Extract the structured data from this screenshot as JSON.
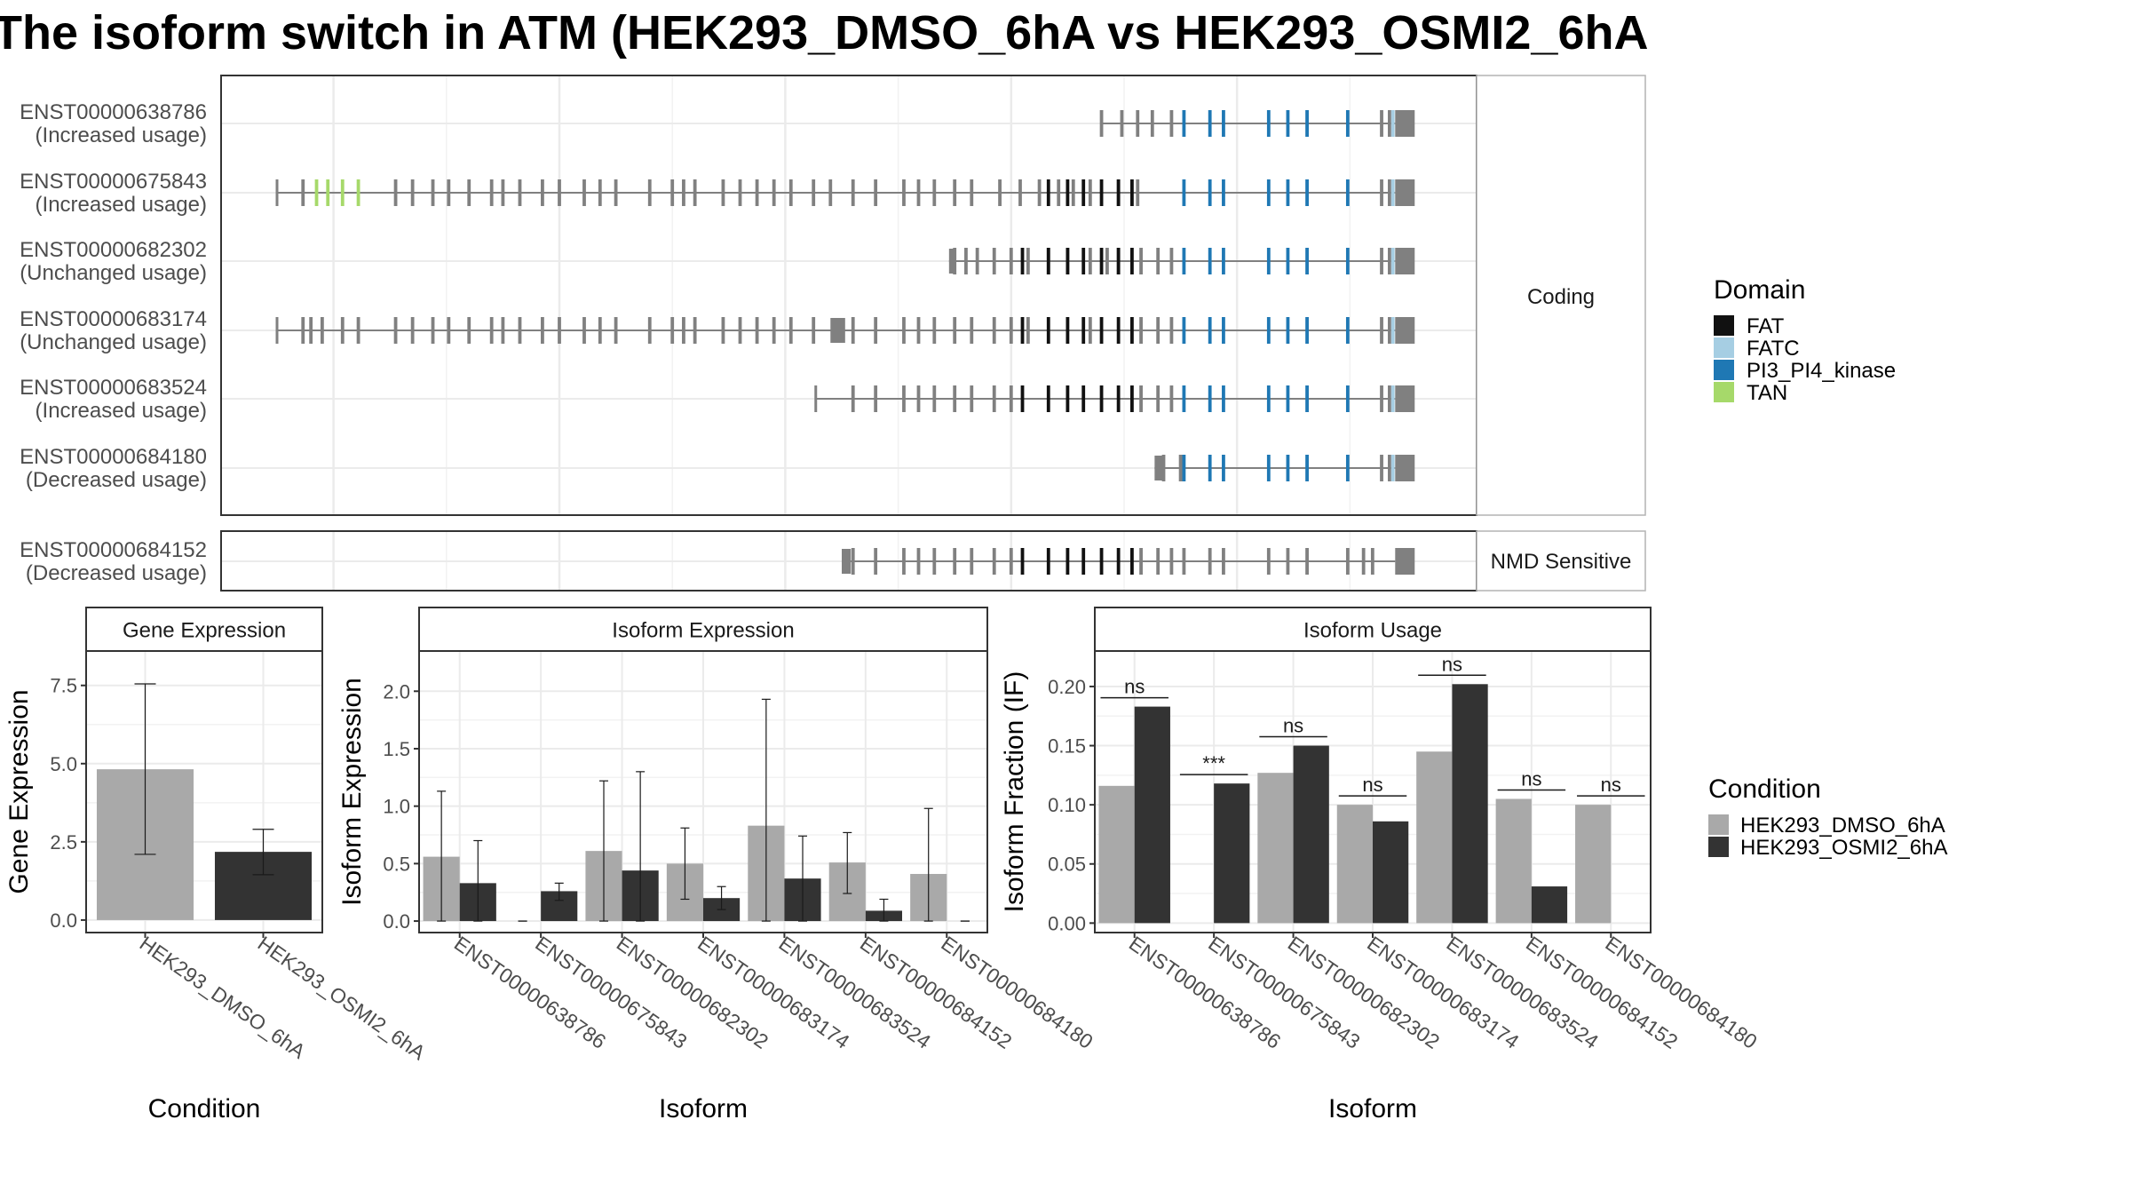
{
  "title": "The isoform switch in ATM (HEK293_DMSO_6hA vs HEK293_OSMI2_6hA",
  "colors": {
    "bg": "#ffffff",
    "panel_border": "#333333",
    "grid": "#ebebeb",
    "exon": "#808080",
    "intron": "#808080",
    "strip_fill": "#ffffff",
    "cond1": "#a9a9a9",
    "cond2": "#333333",
    "text": "#4d4d4d",
    "title_text": "#000000"
  },
  "structure": {
    "panels": [
      "Coding",
      "NMD Sensitive"
    ],
    "genomic_grid": [
      0.05,
      0.25,
      0.45,
      0.65,
      0.85
    ],
    "genomic_minor_grid": [
      0.15,
      0.35,
      0.55,
      0.75,
      0.95
    ],
    "domain_colors": {
      "FAT": "#111111",
      "FATC": "#a6cee3",
      "PI3_PI4_kinase": "#1f78b4",
      "TAN": "#a6d96a"
    },
    "common_tail": {
      "blue_exons": [
        0.826,
        0.838,
        0.878,
        0.895,
        0.912,
        0.948
      ],
      "gray_exons": [
        0.978,
        0.985
      ],
      "fatc_exon": 0.988,
      "utr": [
        0.99,
        1.008
      ]
    },
    "isoforms": [
      {
        "id": "ENST00000638786",
        "usage": "(Increased usage)",
        "panel": "Coding",
        "intron": [
          0.73,
          0.99
        ],
        "utr5": null,
        "gray_exons": [
          0.73,
          0.748,
          0.762,
          0.775,
          0.792
        ],
        "black_exons": [],
        "blue_start": 0.803,
        "tan_exons": []
      },
      {
        "id": "ENST00000675843",
        "usage": "(Increased usage)",
        "panel": "Coding",
        "intron": [
          0,
          0.99
        ],
        "utr5": null,
        "tick_start": 0,
        "gray_exons": [
          0.023,
          0.105,
          0.12,
          0.138,
          0.152,
          0.17,
          0.19,
          0.2,
          0.215,
          0.235,
          0.25,
          0.272,
          0.286,
          0.3,
          0.33,
          0.35,
          0.36,
          0.37,
          0.395,
          0.41,
          0.425,
          0.44,
          0.455,
          0.475,
          0.49,
          0.51,
          0.53,
          0.555,
          0.568,
          0.582,
          0.6,
          0.615,
          0.64,
          0.658,
          0.675,
          0.692,
          0.705,
          0.72,
          0.745,
          0.762
        ],
        "black_exons": [
          0.683,
          0.7,
          0.714,
          0.73,
          0.745,
          0.757
        ],
        "blue_start": 0.803,
        "tan_exons": [
          0.035,
          0.045,
          0.058,
          0.072
        ]
      },
      {
        "id": "ENST00000682302",
        "usage": "(Unchanged usage)",
        "panel": "Coding",
        "intron": [
          0.595,
          0.99
        ],
        "utr5": [
          0.595,
          0.6
        ],
        "gray_exons": [
          0.6,
          0.61,
          0.62,
          0.635,
          0.65,
          0.665,
          0.683,
          0.7,
          0.72,
          0.735,
          0.745,
          0.765,
          0.78,
          0.792
        ],
        "black_exons": [
          0.66,
          0.683,
          0.7,
          0.714,
          0.73,
          0.745,
          0.757
        ],
        "blue_start": 0.803,
        "tan_exons": []
      },
      {
        "id": "ENST00000683174",
        "usage": "(Unchanged usage)",
        "panel": "Coding",
        "intron": [
          0,
          0.99
        ],
        "utr5": [
          0.49,
          0.503
        ],
        "tick_start": 0,
        "gray_exons": [
          0.023,
          0.03,
          0.04,
          0.058,
          0.072,
          0.105,
          0.12,
          0.138,
          0.152,
          0.17,
          0.19,
          0.2,
          0.215,
          0.235,
          0.25,
          0.272,
          0.286,
          0.3,
          0.33,
          0.35,
          0.36,
          0.37,
          0.395,
          0.41,
          0.425,
          0.44,
          0.455,
          0.475,
          0.51,
          0.53,
          0.555,
          0.568,
          0.582,
          0.6,
          0.615,
          0.635,
          0.65,
          0.665,
          0.72,
          0.765,
          0.78,
          0.792
        ],
        "black_exons": [
          0.66,
          0.683,
          0.7,
          0.714,
          0.73,
          0.745,
          0.757
        ],
        "blue_start": 0.803,
        "tan_exons": []
      },
      {
        "id": "ENST00000683524",
        "usage": "(Increased usage)",
        "panel": "Coding",
        "intron": [
          0.477,
          0.99
        ],
        "utr5": null,
        "tick_start": 0.477,
        "gray_exons": [
          0.51,
          0.53,
          0.555,
          0.568,
          0.582,
          0.6,
          0.615,
          0.635,
          0.65,
          0.765,
          0.78,
          0.792
        ],
        "black_exons": [
          0.66,
          0.683,
          0.7,
          0.714,
          0.73,
          0.745,
          0.757
        ],
        "blue_start": 0.803,
        "tan_exons": []
      },
      {
        "id": "ENST00000684180",
        "usage": "(Decreased usage)",
        "panel": "Coding",
        "intron": [
          0.777,
          0.99
        ],
        "utr5": [
          0.777,
          0.785
        ],
        "gray_exons": [
          0.785,
          0.8
        ],
        "black_exons": [],
        "blue_start": 0.803,
        "tan_exons": []
      },
      {
        "id": "ENST00000684152",
        "usage": "(Decreased usage)",
        "panel": "NMD Sensitive",
        "intron": [
          0.5,
          0.99
        ],
        "utr5": [
          0.5,
          0.508
        ],
        "gray_exons": [
          0.51,
          0.53,
          0.555,
          0.568,
          0.582,
          0.6,
          0.615,
          0.635,
          0.65,
          0.765,
          0.78,
          0.792,
          0.803,
          0.826,
          0.838,
          0.878,
          0.895,
          0.912,
          0.948,
          0.962,
          0.97
        ],
        "black_exons": [
          0.66,
          0.683,
          0.7,
          0.714,
          0.73,
          0.745,
          0.757
        ],
        "blue_start": null,
        "tan_exons": []
      }
    ]
  },
  "legends": {
    "domain": {
      "title": "Domain",
      "items": [
        {
          "label": "FAT",
          "color": "#111111"
        },
        {
          "label": "FATC",
          "color": "#a6cee3"
        },
        {
          "label": "PI3_PI4_kinase",
          "color": "#1f78b4"
        },
        {
          "label": "TAN",
          "color": "#a6d96a"
        }
      ]
    },
    "condition": {
      "title": "Condition",
      "items": [
        {
          "label": "HEK293_DMSO_6hA",
          "color": "#a9a9a9"
        },
        {
          "label": "HEK293_OSMI2_6hA",
          "color": "#333333"
        }
      ]
    }
  },
  "chart_data": [
    {
      "type": "bar",
      "title": "Gene Expression",
      "xlabel": "Condition",
      "ylabel": "Gene Expression",
      "ylim": [
        -0.4,
        8.6
      ],
      "yticks": [
        0.0,
        2.5,
        5.0,
        7.5
      ],
      "ytick_labels": [
        "0.0",
        "2.5",
        "5.0",
        "7.5"
      ],
      "categories": [
        "HEK293_DMSO_6hA",
        "HEK293_OSMI2_6hA"
      ],
      "values": [
        4.82,
        2.18
      ],
      "error": [
        [
          2.1,
          7.55
        ],
        [
          1.45,
          2.9
        ]
      ]
    },
    {
      "type": "bar",
      "title": "Isoform Expression",
      "xlabel": "Isoform",
      "ylabel": "Isoform Expression",
      "ylim": [
        -0.1,
        2.35
      ],
      "yticks": [
        0.0,
        0.5,
        1.0,
        1.5,
        2.0
      ],
      "ytick_labels": [
        "0.0",
        "0.5",
        "1.0",
        "1.5",
        "2.0"
      ],
      "categories": [
        "ENST00000638786",
        "ENST00000675843",
        "ENST00000682302",
        "ENST00000683174",
        "ENST00000683524",
        "ENST00000684152",
        "ENST00000684180"
      ],
      "series": [
        {
          "name": "HEK293_DMSO_6hA",
          "values": [
            0.56,
            0.0,
            0.61,
            0.5,
            0.83,
            0.51,
            0.41
          ],
          "error": [
            [
              0.0,
              1.13
            ],
            [
              0.0,
              0.0
            ],
            [
              0.0,
              1.22
            ],
            [
              0.19,
              0.81
            ],
            [
              0.0,
              1.93
            ],
            [
              0.24,
              0.77
            ],
            [
              0.0,
              0.98
            ]
          ]
        },
        {
          "name": "HEK293_OSMI2_6hA",
          "values": [
            0.33,
            0.26,
            0.44,
            0.2,
            0.37,
            0.09,
            0.0
          ],
          "error": [
            [
              0.0,
              0.7
            ],
            [
              0.18,
              0.33
            ],
            [
              0.0,
              1.3
            ],
            [
              0.1,
              0.3
            ],
            [
              0.0,
              0.74
            ],
            [
              0.0,
              0.19
            ],
            [
              0.0,
              0.0
            ]
          ]
        }
      ]
    },
    {
      "type": "bar",
      "title": "Isoform Usage",
      "xlabel": "Isoform",
      "ylabel": "Isoform Fraction (IF)",
      "ylim": [
        -0.008,
        0.23
      ],
      "yticks": [
        0.0,
        0.05,
        0.1,
        0.15,
        0.2
      ],
      "ytick_labels": [
        "0.00",
        "0.05",
        "0.10",
        "0.15",
        "0.20"
      ],
      "categories": [
        "ENST00000638786",
        "ENST00000675843",
        "ENST00000682302",
        "ENST00000683174",
        "ENST00000683524",
        "ENST00000684152",
        "ENST00000684180"
      ],
      "series": [
        {
          "name": "HEK293_DMSO_6hA",
          "values": [
            0.116,
            0.0,
            0.127,
            0.1,
            0.145,
            0.105,
            0.1
          ]
        },
        {
          "name": "HEK293_OSMI2_6hA",
          "values": [
            0.183,
            0.118,
            0.15,
            0.086,
            0.202,
            0.031,
            0.0
          ]
        }
      ],
      "significance": [
        "ns",
        "***",
        "ns",
        "ns",
        "ns",
        "ns",
        "ns"
      ]
    }
  ]
}
